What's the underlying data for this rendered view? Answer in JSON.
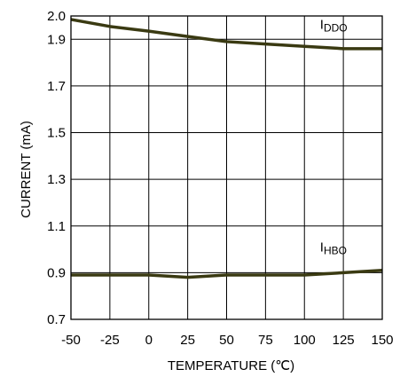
{
  "chart_data": {
    "type": "line",
    "xlabel": "TEMPERATURE (℃)",
    "ylabel": "CURRENT (mA)",
    "xlim": [
      -50,
      150
    ],
    "ylim": [
      0.7,
      2.0
    ],
    "x_ticks": [
      -50,
      -25,
      0,
      25,
      50,
      75,
      100,
      125,
      150
    ],
    "x_tick_labels": [
      "-50",
      "-25",
      "0",
      "25",
      "50",
      "75",
      "100",
      "125",
      "150"
    ],
    "y_ticks": [
      0.7,
      0.9,
      1.1,
      1.3,
      1.5,
      1.7,
      1.9,
      2.0
    ],
    "y_tick_labels": [
      "0.7",
      "0.9",
      "1.1",
      "1.3",
      "1.5",
      "1.7",
      "1.9",
      "2.0"
    ],
    "grid": true,
    "line_color": "#3a3a12",
    "series": [
      {
        "label_main": "I",
        "label_sub": "DDO",
        "x": [
          -50,
          -25,
          0,
          25,
          50,
          75,
          100,
          125,
          150
        ],
        "values": [
          1.985,
          1.955,
          1.935,
          1.912,
          1.89,
          1.88,
          1.87,
          1.86,
          1.86
        ]
      },
      {
        "label_main": "I",
        "label_sub": "HBO",
        "x": [
          -50,
          -25,
          0,
          25,
          50,
          75,
          100,
          125,
          150
        ],
        "values": [
          0.89,
          0.89,
          0.89,
          0.88,
          0.89,
          0.89,
          0.89,
          0.9,
          0.91
        ]
      }
    ]
  }
}
